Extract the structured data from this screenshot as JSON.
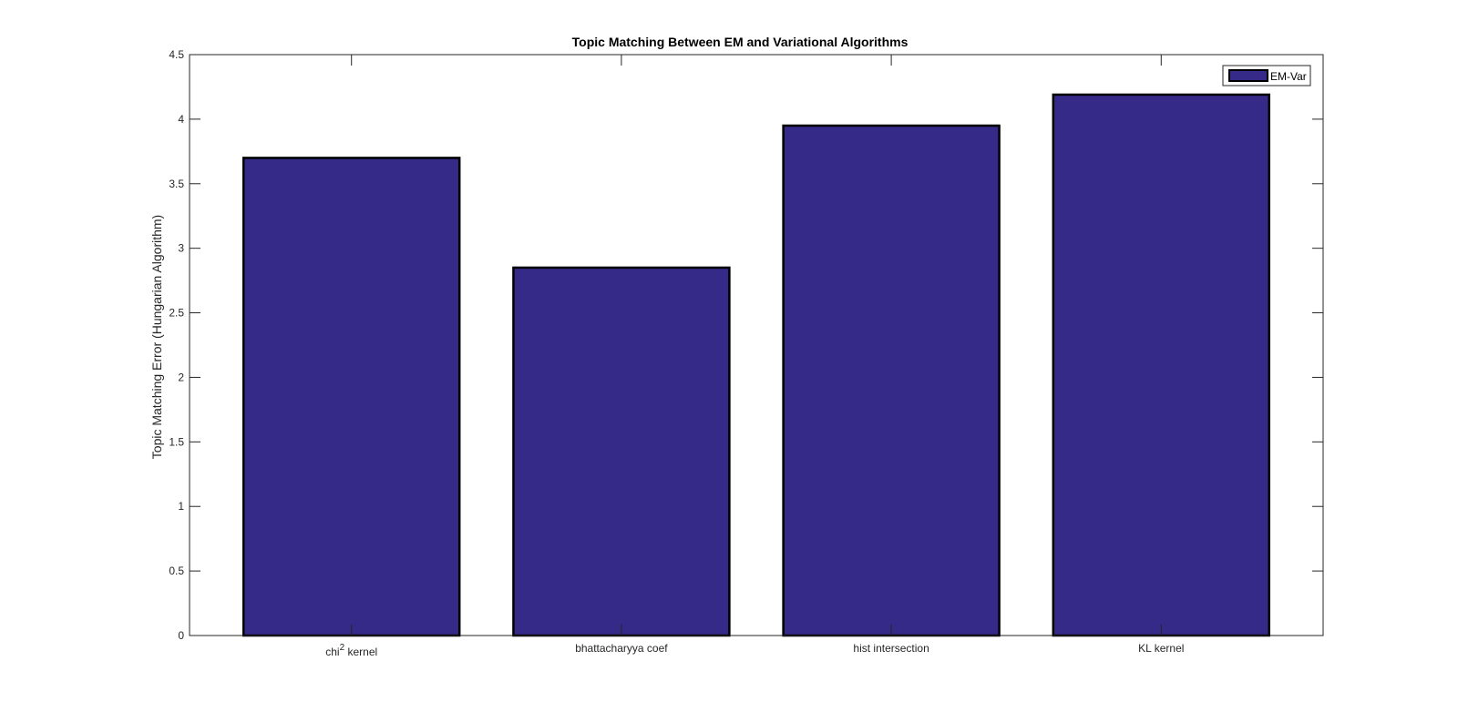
{
  "chart_data": {
    "type": "bar",
    "title": "Topic Matching Between EM and Variational Algorithms",
    "xlabel": "",
    "ylabel": "Topic Matching Error (Hungarian Algorithm)",
    "categories": [
      "chi",
      "bhattacharyya coef",
      "hist intersection",
      "KL kernel"
    ],
    "category_superscripts": [
      "2",
      "",
      "",
      ""
    ],
    "category_suffixes": [
      " kernel",
      "",
      "",
      ""
    ],
    "series": [
      {
        "name": "EM-Var",
        "values": [
          3.7,
          2.85,
          3.95,
          4.19
        ],
        "color": "#352a87"
      }
    ],
    "ylim": [
      0,
      4.5
    ],
    "yticks": [
      0,
      0.5,
      1,
      1.5,
      2,
      2.5,
      3,
      3.5,
      4,
      4.5
    ],
    "grid": false,
    "legend": "top-right"
  }
}
